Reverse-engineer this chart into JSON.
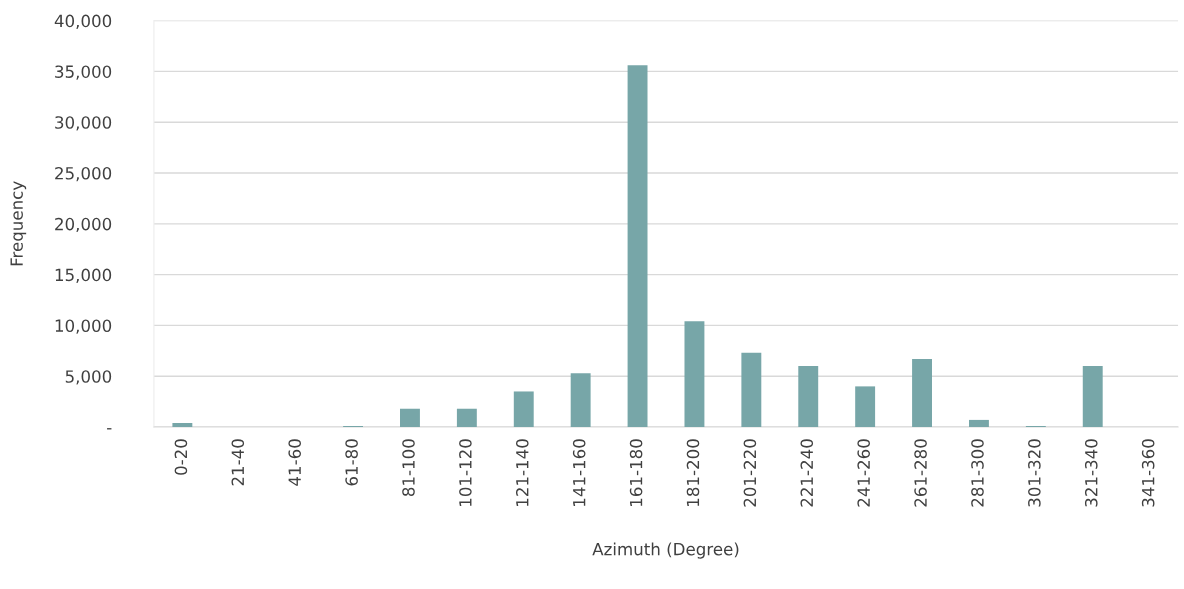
{
  "chart_data": {
    "type": "bar",
    "xlabel": "Azimuth (Degree)",
    "ylabel": "Frequency",
    "categories": [
      "0-20",
      "21-40",
      "41-60",
      "61-80",
      "81-100",
      "101-120",
      "121-140",
      "141-160",
      "161-180",
      "181-200",
      "201-220",
      "221-240",
      "241-260",
      "261-280",
      "281-300",
      "301-320",
      "321-340",
      "341-360"
    ],
    "values": [
      400,
      0,
      0,
      100,
      1800,
      1800,
      3500,
      5300,
      35600,
      10400,
      7300,
      6000,
      4000,
      6700,
      700,
      100,
      6000,
      0
    ],
    "color": "#77a6a8",
    "ylim": [
      0,
      40000
    ],
    "yticks": [
      {
        "value": 0,
        "label": "-"
      },
      {
        "value": 5000,
        "label": "5,000"
      },
      {
        "value": 10000,
        "label": "10,000"
      },
      {
        "value": 15000,
        "label": "15,000"
      },
      {
        "value": 20000,
        "label": "20,000"
      },
      {
        "value": 25000,
        "label": "25,000"
      },
      {
        "value": 30000,
        "label": "30,000"
      },
      {
        "value": 35000,
        "label": "35,000"
      },
      {
        "value": 40000,
        "label": "40,000"
      }
    ],
    "grid": "y",
    "legend": false
  }
}
